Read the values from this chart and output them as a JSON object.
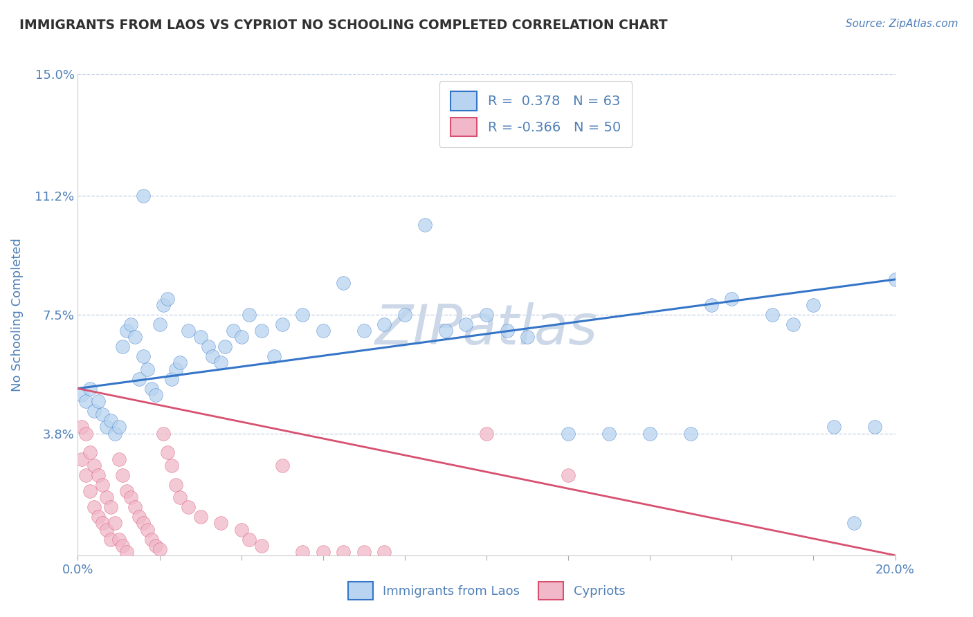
{
  "title": "IMMIGRANTS FROM LAOS VS CYPRIOT NO SCHOOLING COMPLETED CORRELATION CHART",
  "source_text": "Source: ZipAtlas.com",
  "ylabel": "No Schooling Completed",
  "xlim": [
    0.0,
    0.2
  ],
  "ylim": [
    0.0,
    0.15
  ],
  "yticks": [
    0.038,
    0.075,
    0.112,
    0.15
  ],
  "ytick_labels": [
    "3.8%",
    "7.5%",
    "11.2%",
    "15.0%"
  ],
  "blue_r": "0.378",
  "blue_n": "63",
  "pink_r": "-0.366",
  "pink_n": "50",
  "blue_color": "#b8d4f0",
  "pink_color": "#f0b8c8",
  "blue_line_color": "#3575c8",
  "pink_line_color": "#d85070",
  "title_color": "#303030",
  "axis_color": "#5080b8",
  "grid_color": "#c0d0e4",
  "watermark_color": "#ccd8e8",
  "background_color": "#ffffff",
  "blue_line_start_y": 0.052,
  "blue_line_end_y": 0.086,
  "pink_line_start_y": 0.052,
  "pink_line_end_y": 0.0,
  "blue_x": [
    0.001,
    0.002,
    0.003,
    0.004,
    0.005,
    0.006,
    0.007,
    0.008,
    0.009,
    0.01,
    0.011,
    0.012,
    0.013,
    0.014,
    0.015,
    0.016,
    0.017,
    0.018,
    0.019,
    0.02,
    0.021,
    0.022,
    0.023,
    0.024,
    0.025,
    0.027,
    0.03,
    0.032,
    0.033,
    0.035,
    0.036,
    0.038,
    0.04,
    0.042,
    0.045,
    0.048,
    0.05,
    0.055,
    0.06,
    0.065,
    0.07,
    0.075,
    0.08,
    0.09,
    0.095,
    0.1,
    0.105,
    0.11,
    0.12,
    0.13,
    0.14,
    0.15,
    0.155,
    0.16,
    0.17,
    0.175,
    0.18,
    0.185,
    0.19,
    0.195,
    0.2,
    0.016,
    0.085
  ],
  "blue_y": [
    0.05,
    0.048,
    0.052,
    0.045,
    0.048,
    0.044,
    0.04,
    0.042,
    0.038,
    0.04,
    0.065,
    0.07,
    0.072,
    0.068,
    0.055,
    0.062,
    0.058,
    0.052,
    0.05,
    0.072,
    0.078,
    0.08,
    0.055,
    0.058,
    0.06,
    0.07,
    0.068,
    0.065,
    0.062,
    0.06,
    0.065,
    0.07,
    0.068,
    0.075,
    0.07,
    0.062,
    0.072,
    0.075,
    0.07,
    0.085,
    0.07,
    0.072,
    0.075,
    0.07,
    0.072,
    0.075,
    0.07,
    0.068,
    0.038,
    0.038,
    0.038,
    0.038,
    0.078,
    0.08,
    0.075,
    0.072,
    0.078,
    0.04,
    0.01,
    0.04,
    0.086,
    0.112,
    0.103
  ],
  "pink_x": [
    0.001,
    0.001,
    0.002,
    0.002,
    0.003,
    0.003,
    0.004,
    0.004,
    0.005,
    0.005,
    0.006,
    0.006,
    0.007,
    0.007,
    0.008,
    0.008,
    0.009,
    0.01,
    0.01,
    0.011,
    0.011,
    0.012,
    0.012,
    0.013,
    0.014,
    0.015,
    0.016,
    0.017,
    0.018,
    0.019,
    0.02,
    0.021,
    0.022,
    0.023,
    0.024,
    0.025,
    0.027,
    0.03,
    0.035,
    0.04,
    0.042,
    0.045,
    0.05,
    0.055,
    0.06,
    0.065,
    0.07,
    0.075,
    0.1,
    0.12
  ],
  "pink_y": [
    0.04,
    0.03,
    0.038,
    0.025,
    0.032,
    0.02,
    0.028,
    0.015,
    0.025,
    0.012,
    0.022,
    0.01,
    0.018,
    0.008,
    0.015,
    0.005,
    0.01,
    0.03,
    0.005,
    0.025,
    0.003,
    0.02,
    0.001,
    0.018,
    0.015,
    0.012,
    0.01,
    0.008,
    0.005,
    0.003,
    0.002,
    0.038,
    0.032,
    0.028,
    0.022,
    0.018,
    0.015,
    0.012,
    0.01,
    0.008,
    0.005,
    0.003,
    0.028,
    0.001,
    0.001,
    0.001,
    0.001,
    0.001,
    0.038,
    0.025
  ]
}
